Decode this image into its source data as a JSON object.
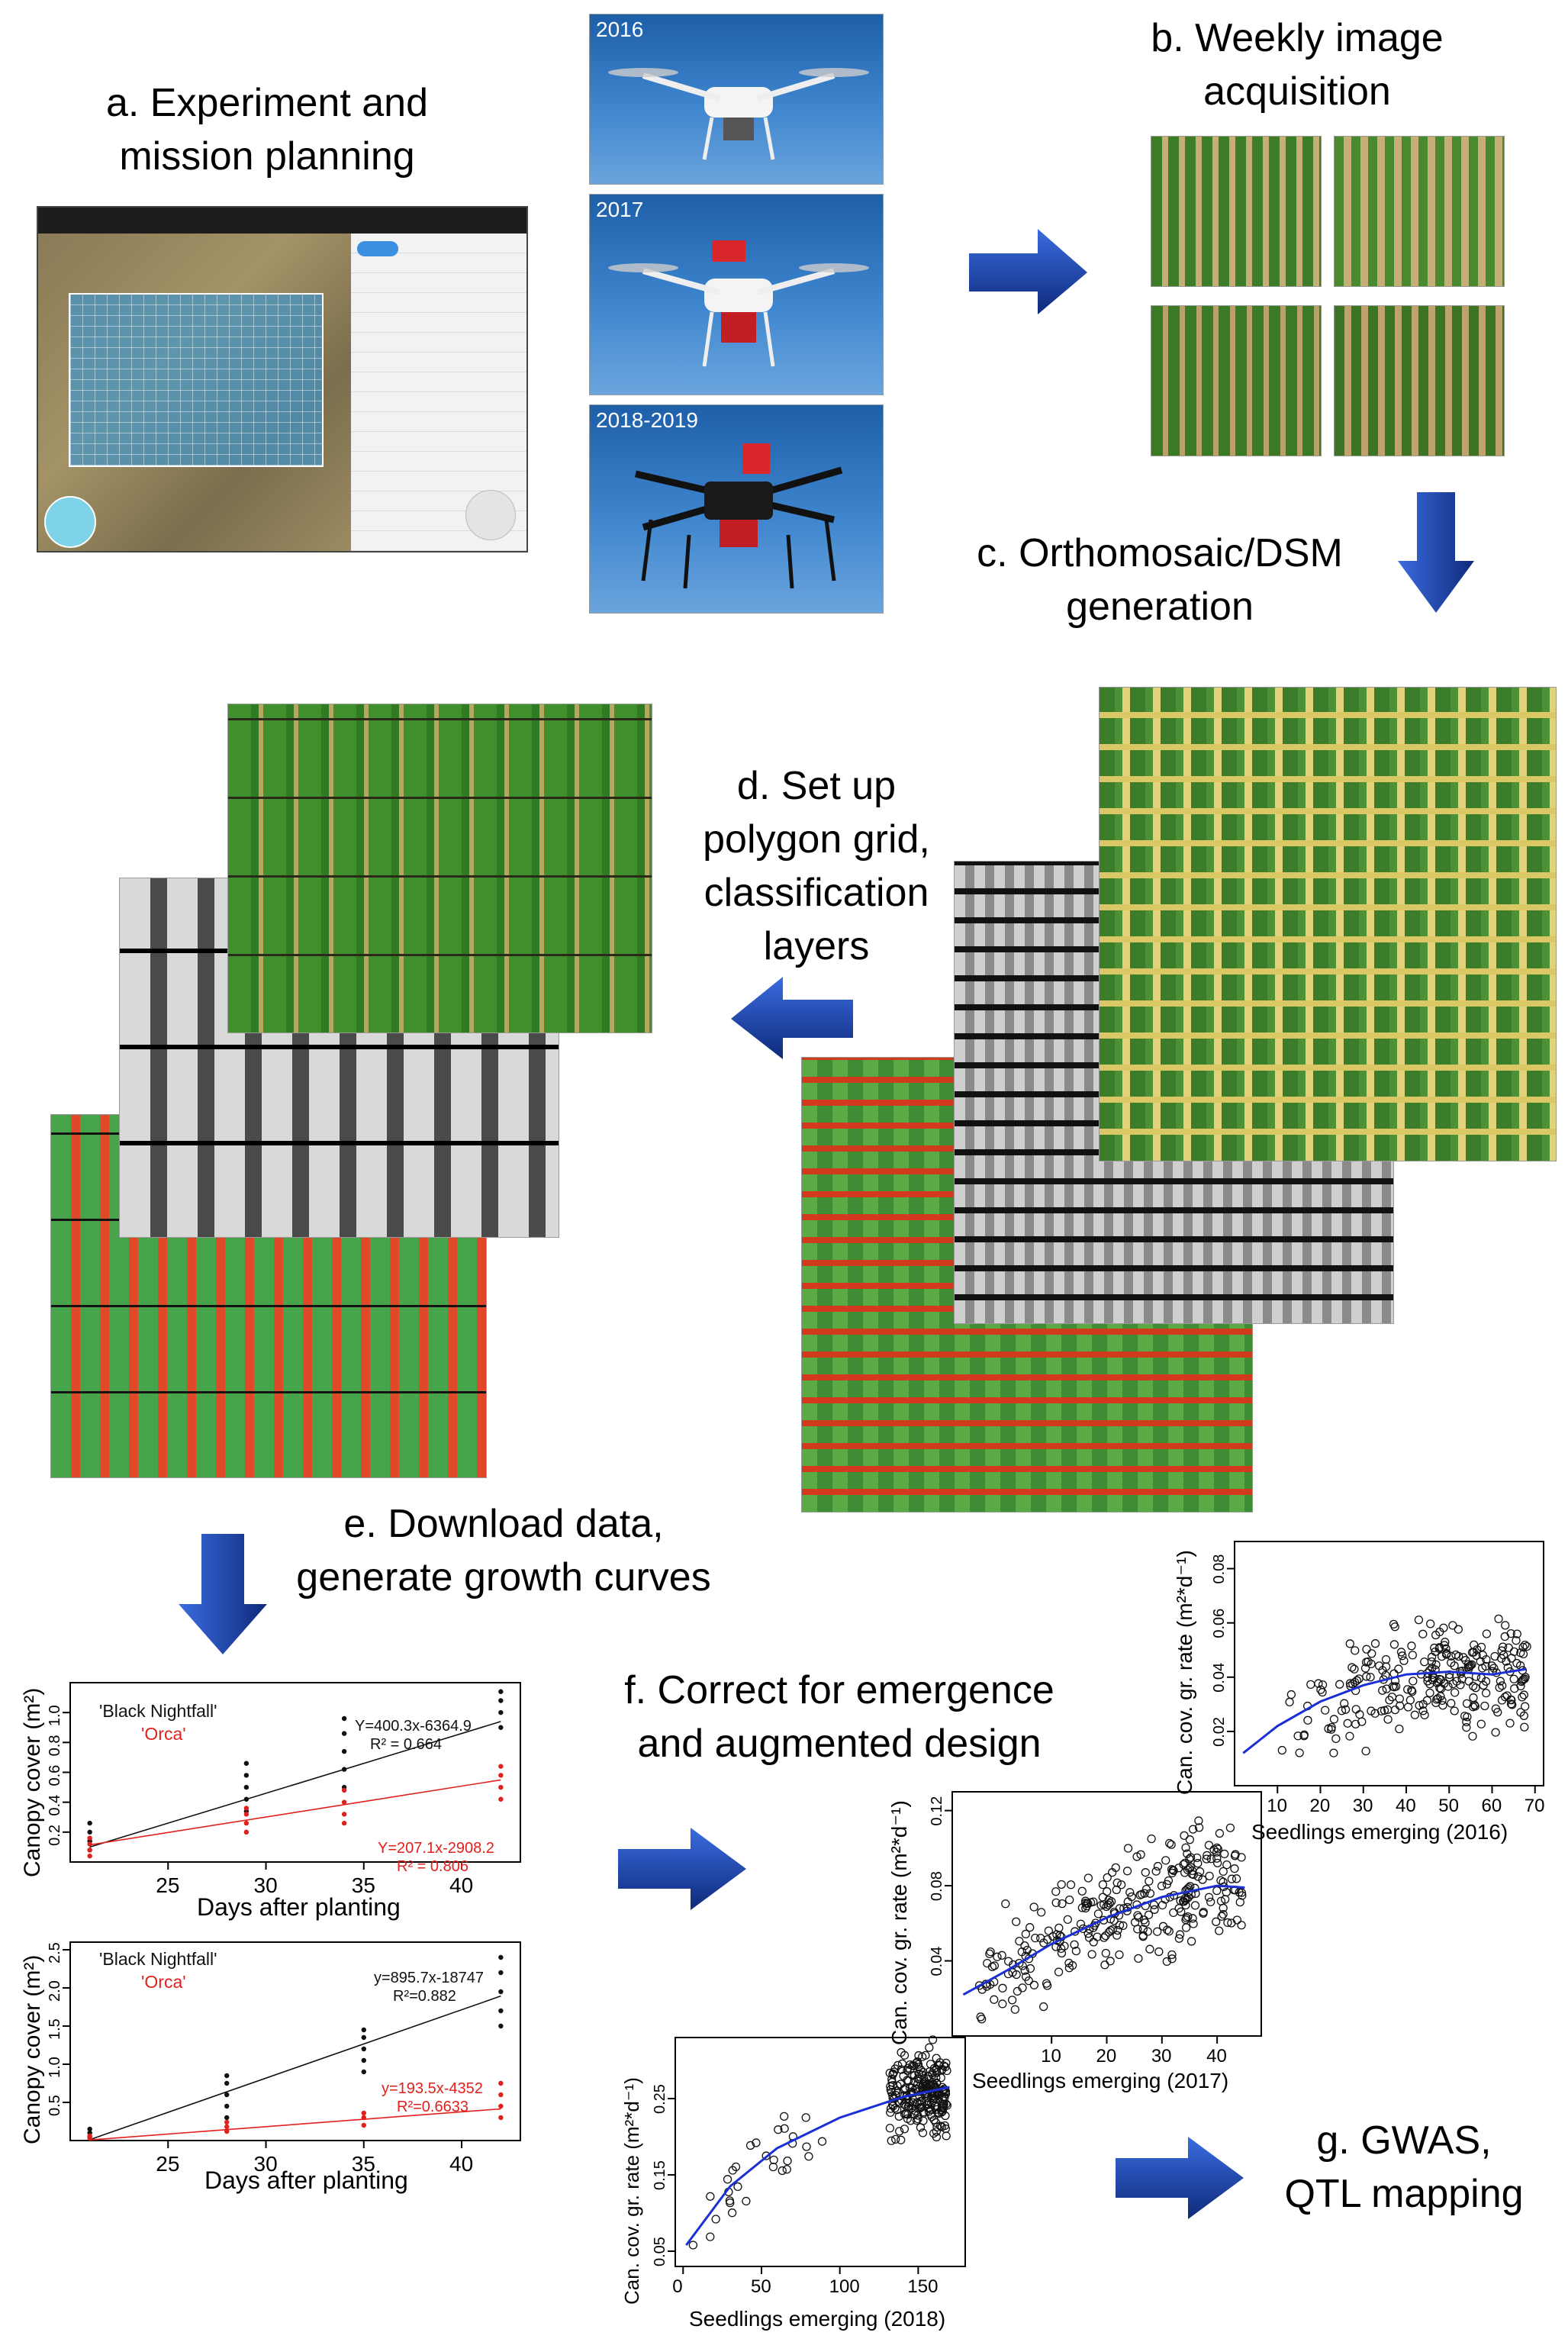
{
  "steps": {
    "a": {
      "line1": "a. Experiment and",
      "line2": "mission planning"
    },
    "b": {
      "line1": "b. Weekly image",
      "line2": "acquisition"
    },
    "c": {
      "line1": "c. Orthomosaic/DSM",
      "line2": "generation"
    },
    "d": {
      "line1": "d. Set up",
      "line2": "polygon grid,",
      "line3": "classification",
      "line4": "layers"
    },
    "e": {
      "line1": "e. Download data,",
      "line2": "generate growth curves"
    },
    "f": {
      "line1": "f. Correct for emergence",
      "line2": "and augmented design"
    },
    "g": {
      "line1": "g. GWAS,",
      "line2": "QTL mapping"
    }
  },
  "drones": {
    "year1": "2016",
    "year2": "2017",
    "year3": "2018-2019"
  },
  "colors": {
    "arrow": "#1f4fbf",
    "arrow_dark": "#0e2a7a",
    "series_black": "#111111",
    "series_red": "#e0201c",
    "fit_blue": "#1a2fd6",
    "crop_green": "#3f8f2c",
    "soil_red": "#d23a1e"
  },
  "growth_charts": [
    {
      "legend_black": "'Black Nightfall'",
      "legend_red": "'Orca'",
      "eq_black": "Y=400.3x-6364.9",
      "r2_black": "R² = 0.664",
      "eq_red": "Y=207.1x-2908.2",
      "r2_red": "R² = 0.806",
      "xlabel": "Days after planting",
      "ylabel": "Canopy cover (m²)",
      "xticks": [
        "25",
        "30",
        "35",
        "40"
      ],
      "yticks": [
        "0.2",
        "0.4",
        "0.6",
        "0.8",
        "1.0"
      ]
    },
    {
      "legend_black": "'Black Nightfall'",
      "legend_red": "'Orca'",
      "eq_black": "y=895.7x-18747",
      "r2_black": "R²=0.882",
      "eq_red": "y=193.5x-4352",
      "r2_red": "R²=0.6633",
      "xlabel": "Days after planting",
      "ylabel": "Canopy cover (m²)",
      "xticks": [
        "25",
        "30",
        "35",
        "40"
      ],
      "yticks": [
        "0.5",
        "1.0",
        "1.5",
        "2.0",
        "2.5"
      ]
    }
  ],
  "chart_data": [
    {
      "type": "scatter",
      "title": "",
      "xlabel": "Days after planting",
      "ylabel": "Canopy cover (m²)",
      "xlim": [
        20,
        43
      ],
      "ylim": [
        0,
        1.2
      ],
      "series": [
        {
          "name": "'Black Nightfall'",
          "color": "#111111",
          "x": [
            21,
            21,
            21,
            21,
            29,
            29,
            29,
            29,
            29,
            34,
            34,
            34,
            34,
            34,
            42,
            42,
            42,
            42
          ],
          "y": [
            0.08,
            0.14,
            0.2,
            0.26,
            0.34,
            0.42,
            0.5,
            0.58,
            0.66,
            0.5,
            0.62,
            0.74,
            0.86,
            0.96,
            0.9,
            1.0,
            1.08,
            1.14
          ],
          "fit_slope": 0.04,
          "fit_intercept": -0.74
        },
        {
          "name": "'Orca'",
          "color": "#e0201c",
          "x": [
            21,
            21,
            21,
            21,
            29,
            29,
            29,
            29,
            34,
            34,
            34,
            34,
            42,
            42,
            42,
            42
          ],
          "y": [
            0.04,
            0.08,
            0.12,
            0.16,
            0.2,
            0.26,
            0.32,
            0.36,
            0.26,
            0.32,
            0.4,
            0.48,
            0.42,
            0.5,
            0.58,
            0.64
          ],
          "fit_slope": 0.0207,
          "fit_intercept": -0.32
        }
      ]
    },
    {
      "type": "scatter",
      "title": "",
      "xlabel": "Days after planting",
      "ylabel": "Canopy cover (m²)",
      "xlim": [
        20,
        43
      ],
      "ylim": [
        0,
        2.6
      ],
      "series": [
        {
          "name": "'Black Nightfall'",
          "color": "#111111",
          "x": [
            21,
            21,
            21,
            28,
            28,
            28,
            28,
            28,
            35,
            35,
            35,
            35,
            35,
            42,
            42,
            42,
            42,
            42
          ],
          "y": [
            0.05,
            0.1,
            0.15,
            0.3,
            0.45,
            0.6,
            0.75,
            0.85,
            0.9,
            1.05,
            1.2,
            1.35,
            1.45,
            1.5,
            1.7,
            1.95,
            2.2,
            2.4
          ],
          "fit_slope": 0.0896,
          "fit_intercept": -1.87
        },
        {
          "name": "'Orca'",
          "color": "#e0201c",
          "x": [
            21,
            21,
            28,
            28,
            28,
            35,
            35,
            35,
            42,
            42,
            42,
            42
          ],
          "y": [
            0.03,
            0.06,
            0.12,
            0.18,
            0.24,
            0.2,
            0.3,
            0.36,
            0.3,
            0.45,
            0.6,
            0.75
          ],
          "fit_slope": 0.0194,
          "fit_intercept": -0.4
        }
      ]
    },
    {
      "type": "scatter",
      "title": "",
      "xlabel": "Seedlings emerging (2016)",
      "ylabel": "Can. cov. gr. rate (m²*d⁻¹)",
      "xlim": [
        0,
        72
      ],
      "ylim": [
        0,
        0.09
      ],
      "xticks": [
        "10",
        "20",
        "30",
        "40",
        "50",
        "60",
        "70"
      ],
      "yticks": [
        "0.02",
        "0.04",
        "0.06",
        "0.08"
      ],
      "curve": [
        [
          2,
          0.012
        ],
        [
          10,
          0.022
        ],
        [
          20,
          0.031
        ],
        [
          30,
          0.037
        ],
        [
          40,
          0.041
        ],
        [
          50,
          0.042
        ],
        [
          60,
          0.041
        ],
        [
          68,
          0.043
        ]
      ]
    },
    {
      "type": "scatter",
      "title": "",
      "xlabel": "Seedlings emerging (2017)",
      "ylabel": "Can. cov. gr. rate (m²*d⁻¹)",
      "xlim": [
        -8,
        48
      ],
      "ylim": [
        0,
        0.13
      ],
      "xticks": [
        "10",
        "20",
        "30",
        "40"
      ],
      "yticks": [
        "0.04",
        "0.08",
        "0.12"
      ],
      "curve": [
        [
          -6,
          0.022
        ],
        [
          2,
          0.035
        ],
        [
          10,
          0.049
        ],
        [
          20,
          0.063
        ],
        [
          30,
          0.074
        ],
        [
          40,
          0.08
        ],
        [
          45,
          0.079
        ]
      ]
    },
    {
      "type": "scatter",
      "title": "",
      "xlabel": "Seedlings emerging (2018)",
      "ylabel": "Can. cov. gr. rate (m²*d⁻¹)",
      "xlim": [
        -5,
        180
      ],
      "ylim": [
        0.03,
        0.33
      ],
      "xticks": [
        "0",
        "50",
        "100",
        "150"
      ],
      "yticks": [
        "0.05",
        "0.15",
        "0.25"
      ],
      "curve": [
        [
          2,
          0.058
        ],
        [
          30,
          0.135
        ],
        [
          60,
          0.185
        ],
        [
          100,
          0.225
        ],
        [
          140,
          0.252
        ],
        [
          170,
          0.265
        ]
      ]
    }
  ]
}
